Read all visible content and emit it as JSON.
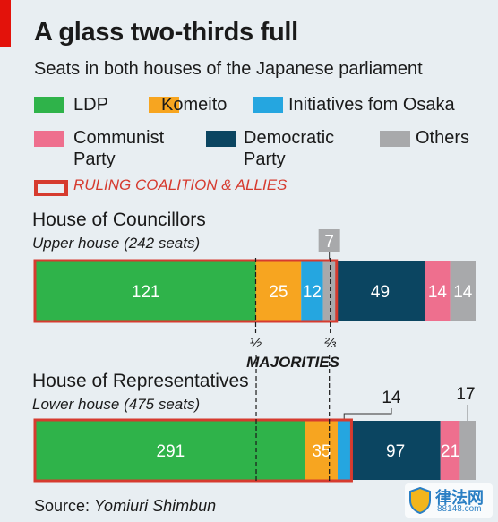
{
  "header": {
    "title": "A glass two-thirds full",
    "subtitle": "Seats in both houses of the Japanese parliament"
  },
  "colors": {
    "LDP": "#2fb34a",
    "Komeito": "#f7a520",
    "Osaka": "#25a6e0",
    "Communist": "#ee6f8e",
    "Democratic": "#0b4561",
    "Others": "#a8a9ab",
    "ruling": "#d63b2f"
  },
  "legend": {
    "ldp": "LDP",
    "komeito": "Komeito",
    "osaka": "Initiatives fom Osaka",
    "communist_1": "Communist",
    "communist_2": "Party",
    "democratic_1": "Democratic",
    "democratic_2": "Party",
    "others": "Others",
    "ruling": "RULING COALITION & ALLIES"
  },
  "source": {
    "prefix": "Source: ",
    "name": "Yomiuri Shimbun"
  },
  "watermark": {
    "text": "律法网",
    "sub": "88148.com"
  },
  "chart_data": {
    "type": "bar",
    "orientation": "horizontal-stacked",
    "majorities_label": "MAJORITIES",
    "half_label": "½",
    "two_thirds_label": "⅔",
    "houses": [
      {
        "id": "councillors",
        "name": "House of Councillors",
        "subtitle": "Upper house (242 seats)",
        "total": 242,
        "half_mark": 121,
        "two_thirds_mark": 162,
        "ruling_end": 165,
        "segments": [
          {
            "party": "LDP",
            "value": 121,
            "label": "121"
          },
          {
            "party": "Komeito",
            "value": 25,
            "label": "25"
          },
          {
            "party": "Osaka",
            "value": 12,
            "label": "12"
          },
          {
            "party": "Others",
            "value": 7,
            "label": "7",
            "callout": true
          },
          {
            "party": "Democratic",
            "value": 49,
            "label": "49"
          },
          {
            "party": "Communist",
            "value": 14,
            "label": "14"
          },
          {
            "party": "Others",
            "value": 14,
            "label": "14"
          }
        ]
      },
      {
        "id": "representatives",
        "name": "House of Representatives",
        "subtitle": "Lower house (475 seats)",
        "total": 475,
        "half_mark": 238,
        "two_thirds_mark": 317,
        "ruling_end": 340,
        "segments": [
          {
            "party": "LDP",
            "value": 291,
            "label": "291"
          },
          {
            "party": "Komeito",
            "value": 35,
            "label": "35"
          },
          {
            "party": "Osaka",
            "value": 14,
            "label": "14",
            "callout": true
          },
          {
            "party": "Democratic",
            "value": 97,
            "label": "97"
          },
          {
            "party": "Communist",
            "value": 21,
            "label": "21"
          },
          {
            "party": "Others",
            "value": 17,
            "label": "17",
            "callout": true
          }
        ]
      }
    ]
  }
}
